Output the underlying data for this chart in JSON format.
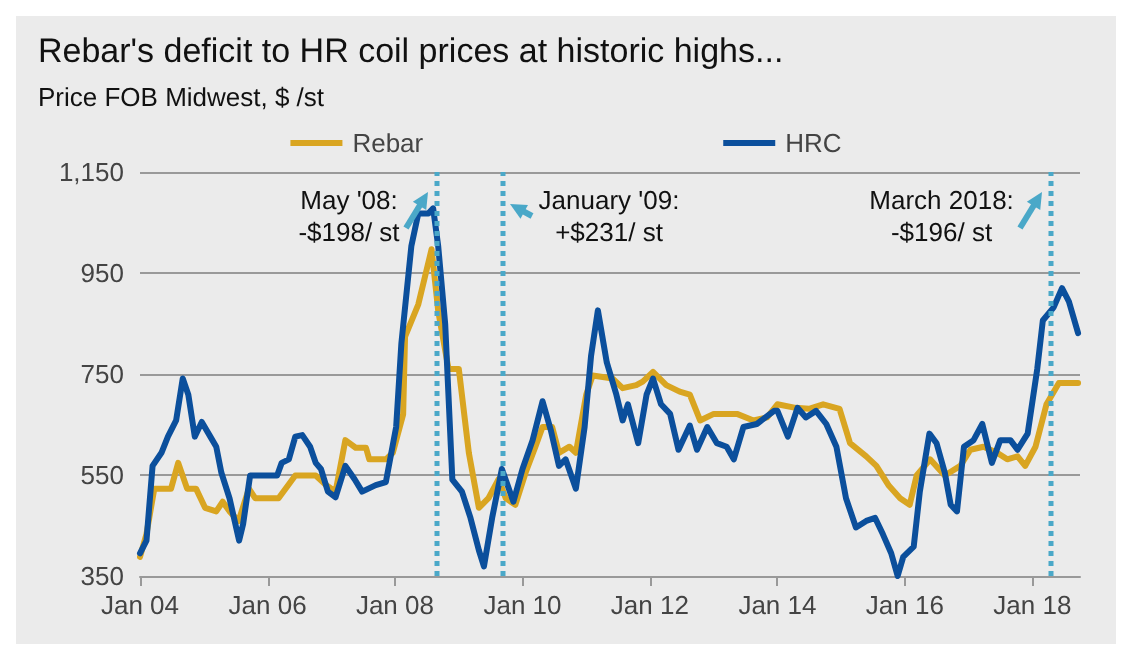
{
  "chart_data": {
    "type": "line",
    "title": "Rebar's deficit to HR coil prices at historic highs...",
    "subtitle": "Price FOB Midwest, $ /st",
    "series": [
      {
        "name": "Rebar",
        "color": "#d9a521",
        "x": [
          "2004-01-01",
          "2004-02-07",
          "2004-03-23",
          "2004-06-27",
          "2004-08-07",
          "2004-09-27",
          "2004-11-17",
          "2005-01-08",
          "2005-03-13",
          "2005-04-19",
          "2005-05-28",
          "2005-07-19",
          "2005-09-16",
          "2005-10-22",
          "2006-03-05",
          "2006-06-09",
          "2006-10-04",
          "2006-12-02",
          "2007-01-26",
          "2007-03-23",
          "2007-05-21",
          "2007-07-19",
          "2007-08-07",
          "2007-11-10",
          "2007-12-20",
          "2008-02-17",
          "2008-02-28",
          "2008-05-14",
          "2008-07-29",
          "2008-09-05",
          "2008-11-03",
          "2009-01-01",
          "2009-02-28",
          "2009-04-26",
          "2009-06-20",
          "2009-08-17",
          "2009-09-27",
          "2009-11-21",
          "2010-01-19",
          "2010-03-16",
          "2010-04-26",
          "2010-06-20",
          "2010-07-29",
          "2010-09-27",
          "2010-11-03",
          "2011-01-01",
          "2011-02-07",
          "2011-06-02",
          "2011-07-29",
          "2011-10-15",
          "2011-11-21",
          "2012-01-19",
          "2012-04-04",
          "2012-06-20",
          "2012-08-17",
          "2012-10-15",
          "2013-01-01",
          "2013-03-16",
          "2013-05-14",
          "2013-08-17",
          "2013-11-03",
          "2014-01-01",
          "2014-04-15",
          "2014-07-01",
          "2014-09-20",
          "2014-12-23",
          "2015-02-21",
          "2015-05-25",
          "2015-07-22",
          "2015-10-01",
          "2015-12-05",
          "2016-01-29",
          "2016-03-09",
          "2016-05-25",
          "2016-08-17",
          "2016-11-14",
          "2017-01-11",
          "2017-03-27",
          "2017-06-13",
          "2017-08-10",
          "2017-10-08",
          "2017-11-21",
          "2018-01-19",
          "2018-03-23",
          "2018-06-02",
          "2018-09-20"
        ],
        "values": [
          388,
          433,
          523,
          523,
          574,
          523,
          523,
          485,
          478,
          497,
          478,
          459,
          523,
          504,
          504,
          549,
          549,
          530,
          517,
          619,
          604,
          604,
          581,
          581,
          594,
          670,
          824,
          888,
          997,
          875,
          760,
          760,
          593,
          485,
          504,
          542,
          504,
          491,
          555,
          606,
          645,
          645,
          594,
          606,
          594,
          709,
          747,
          741,
          722,
          728,
          735,
          754,
          728,
          715,
          709,
          658,
          671,
          671,
          671,
          658,
          664,
          690,
          683,
          681,
          690,
          681,
          613,
          587,
          568,
          529,
          504,
          491,
          549,
          581,
          549,
          568,
          600,
          606,
          594,
          581,
          587,
          568,
          606,
          690,
          732,
          732
        ]
      },
      {
        "name": "HRC",
        "color": "#0b4f9c",
        "x": [
          "2004-01-01",
          "2004-02-07",
          "2004-03-13",
          "2004-05-03",
          "2004-06-09",
          "2004-07-26",
          "2004-09-02",
          "2004-10-04",
          "2004-11-10",
          "2004-12-20",
          "2005-02-07",
          "2005-03-13",
          "2005-04-11",
          "2005-05-28",
          "2005-07-22",
          "2005-08-14",
          "2005-09-23",
          "2005-12-02",
          "2006-02-25",
          "2006-03-23",
          "2006-05-03",
          "2006-06-09",
          "2006-07-19",
          "2006-09-02",
          "2006-10-04",
          "2006-11-03",
          "2006-12-13",
          "2007-01-26",
          "2007-03-23",
          "2007-05-14",
          "2007-06-27",
          "2007-09-13",
          "2007-11-10",
          "2008-01-08",
          "2008-02-07",
          "2008-04-04",
          "2008-05-14",
          "2008-07-11",
          "2008-08-07",
          "2008-09-05",
          "2008-10-15",
          "2008-11-25",
          "2009-01-19",
          "2009-03-09",
          "2009-04-26",
          "2009-05-25",
          "2009-07-11",
          "2009-09-05",
          "2009-11-10",
          "2010-01-01",
          "2010-02-28",
          "2010-04-26",
          "2010-06-13",
          "2010-07-29",
          "2010-09-05",
          "2010-11-03",
          "2010-12-23",
          "2011-01-29",
          "2011-03-09",
          "2011-04-29",
          "2011-06-23",
          "2011-07-29",
          "2011-08-28",
          "2011-10-26",
          "2011-12-13",
          "2012-01-19",
          "2012-03-05",
          "2012-04-26",
          "2012-06-13",
          "2012-08-17",
          "2012-09-27",
          "2012-11-25",
          "2013-01-19",
          "2013-03-16",
          "2013-04-26",
          "2013-06-20",
          "2013-09-05",
          "2013-12-13",
          "2014-01-01",
          "2014-03-02",
          "2014-04-26",
          "2014-06-13",
          "2014-08-10",
          "2014-10-08",
          "2014-12-05",
          "2015-01-29",
          "2015-03-27",
          "2015-05-25",
          "2015-07-15",
          "2015-08-28",
          "2015-10-15",
          "2015-11-21",
          "2015-12-23",
          "2016-02-21",
          "2016-03-27",
          "2016-05-21",
          "2016-07-01",
          "2016-08-17",
          "2016-09-20",
          "2016-10-26",
          "2016-12-05",
          "2017-01-29",
          "2017-03-20",
          "2017-05-14",
          "2017-07-01",
          "2017-08-28",
          "2017-10-08",
          "2017-12-05",
          "2018-01-29",
          "2018-03-02",
          "2018-05-03",
          "2018-06-20",
          "2018-07-29",
          "2018-09-20"
        ],
        "values": [
          395,
          420,
          568,
          594,
          626,
          658,
          741,
          709,
          626,
          655,
          626,
          606,
          555,
          504,
          420,
          453,
          549,
          549,
          549,
          574,
          581,
          626,
          629,
          606,
          574,
          562,
          517,
          506,
          568,
          542,
          517,
          530,
          536,
          645,
          811,
          1003,
          1068,
          1068,
          1078,
          1003,
          849,
          541,
          517,
          465,
          401,
          369,
          465,
          562,
          497,
          562,
          619,
          696,
          638,
          568,
          581,
          523,
          645,
          786,
          876,
          773,
          709,
          658,
          690,
          613,
          709,
          741,
          690,
          671,
          600,
          648,
          600,
          645,
          613,
          606,
          581,
          645,
          651,
          677,
          677,
          626,
          683,
          664,
          677,
          651,
          606,
          504,
          446,
          459,
          465,
          433,
          395,
          350,
          388,
          408,
          517,
          632,
          613,
          555,
          491,
          478,
          606,
          619,
          651,
          574,
          619,
          619,
          600,
          632,
          760,
          856,
          882,
          920,
          894,
          831
        ]
      }
    ],
    "xlim": [
      "2004-01-01",
      "2018-10-01"
    ],
    "xticks": [
      {
        "value": "2004-01",
        "label": "Jan 04"
      },
      {
        "value": "2006-01",
        "label": "Jan 06"
      },
      {
        "value": "2008-01",
        "label": "Jan 08"
      },
      {
        "value": "2010-01",
        "label": "Jan 10"
      },
      {
        "value": "2012-01",
        "label": "Jan 12"
      },
      {
        "value": "2014-01",
        "label": "Jan 14"
      },
      {
        "value": "2016-01",
        "label": "Jan 16"
      },
      {
        "value": "2018-01",
        "label": "Jan 18"
      }
    ],
    "ylim": [
      350,
      1150
    ],
    "yticks": [
      350,
      550,
      750,
      950,
      {
        "value": 1150,
        "label": "1,150"
      }
    ],
    "grid": "y",
    "legend": "top",
    "marker": "none",
    "line_style": "solid",
    "ref_lines": [
      {
        "axis": "x",
        "value": "2008-08-21",
        "label": "May '08:\n-$198/ st",
        "color": "#4aa8c8",
        "line_style": "dotted"
      },
      {
        "axis": "x",
        "value": "2009-09-09",
        "label": "January '09:\n+$231/ st",
        "color": "#4aa8c8",
        "line_style": "dotted"
      },
      {
        "axis": "x",
        "value": "2018-04-11",
        "label": "March 2018:\n-$196/ st",
        "color": "#4aa8c8",
        "line_style": "dotted"
      }
    ]
  }
}
